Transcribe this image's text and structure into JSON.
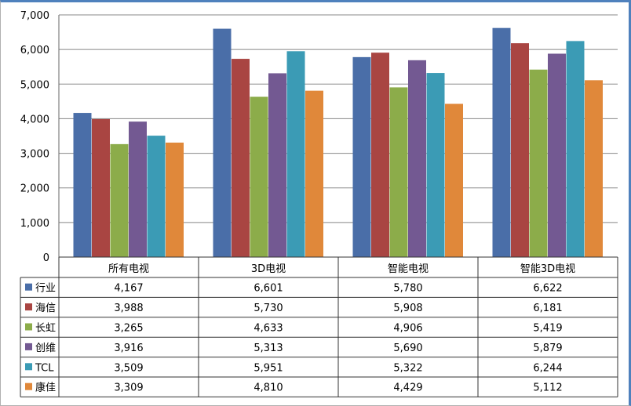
{
  "chart_data": {
    "type": "bar",
    "categories": [
      "所有电视",
      "3D电视",
      "智能电视",
      "智能3D电视"
    ],
    "series": [
      {
        "name": "行业",
        "color": "#4a6ea8",
        "values": [
          4167,
          6601,
          5780,
          6622
        ],
        "labels": [
          "4,167",
          "6,601",
          "5,780",
          "6,622"
        ]
      },
      {
        "name": "海信",
        "color": "#a94542",
        "values": [
          3988,
          5730,
          5908,
          6181
        ],
        "labels": [
          "3,988",
          "5,730",
          "5,908",
          "6,181"
        ]
      },
      {
        "name": "长虹",
        "color": "#8cac4a",
        "values": [
          3265,
          4633,
          4906,
          5419
        ],
        "labels": [
          "3,265",
          "4,633",
          "4,906",
          "5,419"
        ]
      },
      {
        "name": "创维",
        "color": "#735992",
        "values": [
          3916,
          5313,
          5690,
          5879
        ],
        "labels": [
          "3,916",
          "5,313",
          "5,690",
          "5,879"
        ]
      },
      {
        "name": "TCL",
        "color": "#3b9bb5",
        "values": [
          3509,
          5951,
          5322,
          6244
        ],
        "labels": [
          "3,509",
          "5,951",
          "5,322",
          "6,244"
        ]
      },
      {
        "name": "康佳",
        "color": "#e0883a",
        "values": [
          3309,
          4810,
          4429,
          5112
        ],
        "labels": [
          "3,309",
          "4,810",
          "4,429",
          "5,112"
        ]
      }
    ],
    "y_ticks": [
      "0",
      "1,000",
      "2,000",
      "3,000",
      "4,000",
      "5,000",
      "6,000",
      "7,000"
    ],
    "ylim": [
      0,
      7000
    ],
    "grid": true,
    "legend": "data-table"
  }
}
